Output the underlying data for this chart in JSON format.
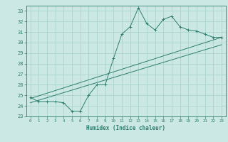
{
  "title": "",
  "xlabel": "Humidex (Indice chaleur)",
  "background_color": "#cce8e4",
  "grid_color": "#aad4cc",
  "line_color": "#2d7d6e",
  "xlim": [
    -0.5,
    23.5
  ],
  "ylim": [
    23,
    33.5
  ],
  "xticks": [
    0,
    1,
    2,
    3,
    4,
    5,
    6,
    7,
    8,
    9,
    10,
    11,
    12,
    13,
    14,
    15,
    16,
    17,
    18,
    19,
    20,
    21,
    22,
    23
  ],
  "yticks": [
    23,
    24,
    25,
    26,
    27,
    28,
    29,
    30,
    31,
    32,
    33
  ],
  "series1_x": [
    0,
    1,
    2,
    3,
    4,
    5,
    6,
    7,
    8,
    9,
    10,
    11,
    12,
    13,
    14,
    15,
    16,
    17,
    18,
    19,
    20,
    21,
    22,
    23
  ],
  "series1_y": [
    24.8,
    24.4,
    24.4,
    24.4,
    24.3,
    23.5,
    23.5,
    25.0,
    26.0,
    26.0,
    28.5,
    30.8,
    31.5,
    33.3,
    31.8,
    31.2,
    32.2,
    32.5,
    31.5,
    31.2,
    31.1,
    30.8,
    30.5,
    30.5
  ],
  "line1_x": [
    0,
    23
  ],
  "line1_y": [
    24.7,
    30.5
  ],
  "line2_x": [
    0,
    23
  ],
  "line2_y": [
    24.3,
    29.8
  ],
  "marker": "+"
}
